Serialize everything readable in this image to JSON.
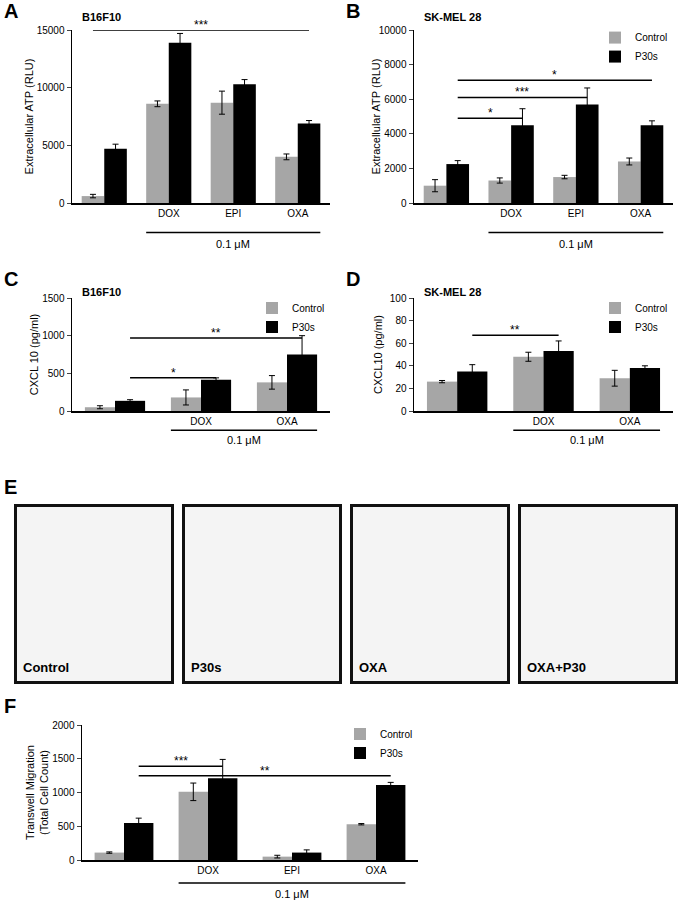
{
  "chart_data": [
    {
      "label": "A",
      "type": "bar",
      "grid": false,
      "annotations": [
        {
          "text": "B16F10"
        }
      ],
      "categories": [
        null,
        "DOX",
        "EPI",
        "OXA"
      ],
      "series": [
        {
          "color": "#a6a6a6",
          "values": [
            600,
            8600,
            8700,
            4000
          ],
          "errors": [
            150,
            250,
            1000,
            250
          ]
        },
        {
          "color": "#000000",
          "values": [
            4700,
            13900,
            10300,
            6900
          ],
          "errors": [
            400,
            800,
            400,
            250
          ]
        }
      ],
      "ylabel": "Extracellular ATP (RLU)",
      "ylim": [
        0,
        15000
      ],
      "yticks": [
        0,
        5000,
        10000,
        15000
      ],
      "bracket": {
        "text": "0.1 μM",
        "from": 1,
        "to": 3
      },
      "significance": [
        {
          "label": "***",
          "y": 15000,
          "from": [
            0,
            0
          ],
          "to": [
            3,
            1
          ]
        }
      ]
    },
    {
      "label": "B",
      "type": "bar",
      "grid": false,
      "legend": "top right",
      "annotations": [
        {
          "text": "SK-MEL 28"
        }
      ],
      "categories": [
        null,
        "DOX",
        "EPI",
        "OXA"
      ],
      "series": [
        {
          "name": "Control",
          "color": "#a6a6a6",
          "values": [
            1000,
            1300,
            1500,
            2400
          ],
          "errors": [
            350,
            150,
            100,
            200
          ]
        },
        {
          "name": "P30s",
          "color": "#000000",
          "values": [
            2250,
            4500,
            5700,
            4500
          ],
          "errors": [
            200,
            950,
            950,
            250
          ]
        }
      ],
      "ylabel": "Extracellular ATP (RLU)",
      "ylim": [
        0,
        10000
      ],
      "yticks": [
        0,
        2000,
        4000,
        6000,
        8000,
        10000
      ],
      "bracket": {
        "text": "0.1 μM",
        "from": 1,
        "to": 3
      },
      "significance": [
        {
          "label": "*",
          "y": 4900,
          "from": [
            0,
            1
          ],
          "to": [
            1,
            1
          ]
        },
        {
          "label": "***",
          "y": 6100,
          "from": [
            0,
            1
          ],
          "to": [
            2,
            1
          ]
        },
        {
          "label": "*",
          "y": 7100,
          "from": [
            0,
            1
          ],
          "to": [
            3,
            1
          ]
        }
      ]
    },
    {
      "label": "C",
      "type": "bar",
      "grid": false,
      "legend": "top right",
      "annotations": [
        {
          "text": "B16F10"
        }
      ],
      "categories": [
        null,
        "DOX",
        "OXA"
      ],
      "series": [
        {
          "name": "Control",
          "color": "#a6a6a6",
          "values": [
            50,
            180,
            380
          ],
          "errors": [
            20,
            100,
            90
          ]
        },
        {
          "name": "P30s",
          "color": "#000000",
          "values": [
            135,
            415,
            750
          ],
          "errors": [
            15,
            25,
            250
          ]
        }
      ],
      "ylabel": "CXCL 10 (pg/ml)",
      "ylim": [
        0,
        1500
      ],
      "yticks": [
        0,
        500,
        1000,
        1500
      ],
      "bracket": {
        "text": "0.1 μM",
        "from": 1,
        "to": 2
      },
      "significance": [
        {
          "label": "*",
          "y": 440,
          "from": [
            0,
            1
          ],
          "to": [
            1,
            1
          ]
        },
        {
          "label": "**",
          "y": 970,
          "from": [
            0,
            1
          ],
          "to": [
            2,
            1
          ]
        }
      ]
    },
    {
      "label": "D",
      "type": "bar",
      "grid": false,
      "legend": "top right",
      "annotations": [
        {
          "text": "SK-MEL 28"
        }
      ],
      "categories": [
        null,
        "DOX",
        "OXA"
      ],
      "series": [
        {
          "name": "Control",
          "color": "#a6a6a6",
          "values": [
            26,
            48,
            29
          ],
          "errors": [
            1,
            4,
            7
          ]
        },
        {
          "name": "P30s",
          "color": "#000000",
          "values": [
            35,
            53,
            38
          ],
          "errors": [
            6,
            9,
            2
          ]
        }
      ],
      "ylabel": "CXCL10 (pg/ml)",
      "ylim": [
        0,
        100
      ],
      "yticks": [
        0,
        20,
        40,
        60,
        80,
        100
      ],
      "bracket": {
        "text": "0.1 μM",
        "from": 1,
        "to": 2
      },
      "significance": [
        {
          "label": "**",
          "y": 67,
          "from": [
            0,
            1
          ],
          "to": [
            1,
            1
          ]
        }
      ]
    },
    {
      "label": "F",
      "type": "bar",
      "grid": false,
      "legend": "top right",
      "categories": [
        null,
        "DOX",
        "EPI",
        "OXA"
      ],
      "series": [
        {
          "name": "Control",
          "color": "#a6a6a6",
          "values": [
            110,
            1010,
            50,
            530
          ],
          "errors": [
            10,
            130,
            20,
            10
          ]
        },
        {
          "name": "P30s",
          "color": "#000000",
          "values": [
            550,
            1210,
            110,
            1110
          ],
          "errors": [
            70,
            280,
            40,
            40
          ]
        }
      ],
      "ylabel": "Transwell Migration\n(Total Cell Count)",
      "ylim": [
        0,
        2000
      ],
      "yticks": [
        0,
        500,
        1000,
        1500,
        2000
      ],
      "bracket": {
        "text": "0.1 μM",
        "from": 1,
        "to": 3
      },
      "significance": [
        {
          "label": "***",
          "y": 1390,
          "from": [
            0,
            1
          ],
          "to": [
            1,
            1
          ]
        },
        {
          "label": "**",
          "y": 1250,
          "from": [
            0,
            1
          ],
          "to": [
            3,
            1
          ]
        }
      ]
    }
  ],
  "images": {
    "label": "E",
    "captions": [
      "Control",
      "P30s",
      "OXA",
      "OXA+P30"
    ]
  }
}
